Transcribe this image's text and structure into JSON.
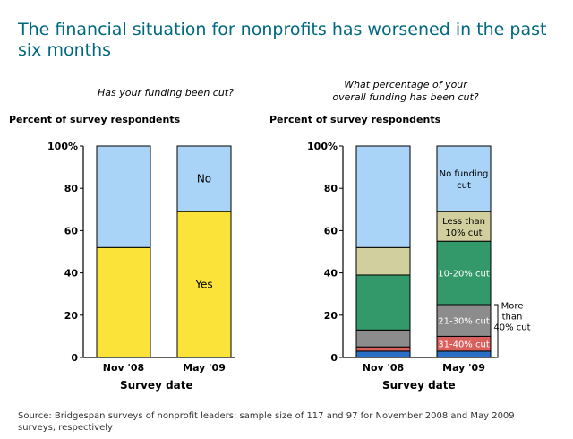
{
  "title": "The financial situation for nonprofits has worsened in the past six months",
  "source": "Source: Bridgespan surveys of nonprofit leaders; sample size of 117 and 97 for November 2008 and May 2009 surveys, respectively",
  "colors": {
    "title": "#00687f",
    "no_funding_cut": "#a9d4f7",
    "yes": "#fbe33a",
    "less_than_10": "#d2cf9e",
    "p10_20": "#33986a",
    "p21_30": "#8c8c8c",
    "p31_40": "#d9605c",
    "over_40": "#2a6fc6"
  },
  "chart_data": [
    {
      "type": "bar",
      "stacked": true,
      "subtitle": "Has your funding been cut?",
      "ylabel": "Percent of survey respondents",
      "xlabel": "Survey date",
      "categories": [
        "Nov '08",
        "May '09"
      ],
      "ylim": [
        0,
        100
      ],
      "yticks": [
        "0",
        "20",
        "40",
        "60",
        "80",
        "100%"
      ],
      "series": [
        {
          "name": "Yes",
          "values": [
            52,
            69
          ],
          "color": "#fbe33a",
          "show_label": [
            false,
            true
          ]
        },
        {
          "name": "No",
          "values": [
            48,
            31
          ],
          "color": "#a9d4f7",
          "show_label": [
            false,
            true
          ]
        }
      ]
    },
    {
      "type": "bar",
      "stacked": true,
      "subtitle": "What percentage of your overall funding has been cut?",
      "ylabel": "Percent of survey respondents",
      "xlabel": "Survey date",
      "categories": [
        "Nov '08",
        "May '09"
      ],
      "ylim": [
        0,
        100
      ],
      "yticks": [
        "0",
        "20",
        "40",
        "60",
        "80",
        "100%"
      ],
      "bracket_label": "More than 40% cut",
      "series": [
        {
          "name": "",
          "values": [
            3,
            3
          ],
          "color": "#2a6fc6",
          "show_label": [
            false,
            false
          ]
        },
        {
          "name": "31-40% cut",
          "values": [
            2,
            7
          ],
          "color": "#d9605c",
          "show_label": [
            false,
            true
          ]
        },
        {
          "name": "21-30% cut",
          "values": [
            8,
            15
          ],
          "color": "#8c8c8c",
          "show_label": [
            false,
            true
          ]
        },
        {
          "name": "10-20% cut",
          "values": [
            26,
            30
          ],
          "color": "#33986a",
          "show_label": [
            false,
            true
          ]
        },
        {
          "name": "Less than 10% cut",
          "values": [
            13,
            14
          ],
          "color": "#d2cf9e",
          "show_label": [
            false,
            true
          ]
        },
        {
          "name": "No funding cut",
          "values": [
            48,
            31
          ],
          "color": "#a9d4f7",
          "show_label": [
            false,
            true
          ]
        }
      ]
    }
  ]
}
